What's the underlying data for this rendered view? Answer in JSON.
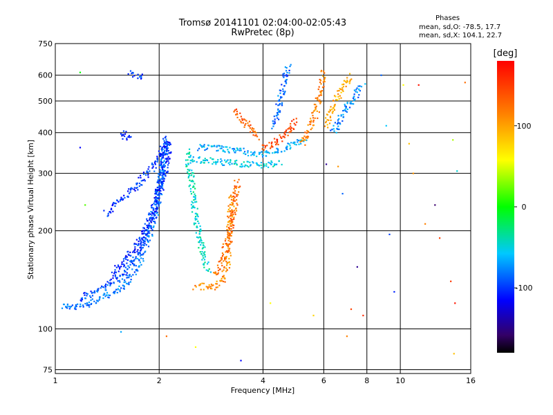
{
  "chart_data": {
    "type": "scatter",
    "title": "Tromsø 20141101 02:04:00-02:05:43",
    "subtitle": "RwPretec (8p)",
    "xlabel": "Frequency [MHz]",
    "ylabel": "Stationary phase Virtual Height [km]",
    "x_scale": "log",
    "y_scale": "log",
    "xlim": [
      1,
      16
    ],
    "ylim": [
      73,
      750
    ],
    "x_ticks": [
      "1",
      "2",
      "4",
      "6",
      "8",
      "10",
      "16"
    ],
    "y_ticks": [
      "750",
      "600",
      "500",
      "400",
      "300",
      "200",
      "100",
      "75"
    ],
    "grid": true,
    "legend": {
      "title": "Phases",
      "line1": "mean, sd,O: -78.5, 17.7",
      "line2": "mean, sd,X: 104.1, 22.7"
    },
    "colorbar": {
      "label": "[deg]",
      "min": -180,
      "max": 180,
      "ticks": [
        "100",
        "0",
        "-100"
      ],
      "colormap": "rainbow"
    },
    "traces": [
      {
        "x": [
          1.05,
          1.13,
          1.2,
          1.28,
          1.38,
          1.5,
          1.62,
          1.75,
          1.86,
          1.96,
          2.02,
          2.08
        ],
        "y": [
          118,
          116,
          118,
          121,
          125,
          130,
          140,
          160,
          190,
          230,
          290,
          370
        ],
        "phase": -85
      },
      {
        "x": [
          1.18,
          1.28,
          1.4,
          1.55,
          1.7,
          1.85,
          1.98,
          2.06,
          2.12
        ],
        "y": [
          124,
          128,
          135,
          145,
          165,
          200,
          260,
          330,
          390
        ],
        "phase": -95
      },
      {
        "x": [
          1.45,
          1.58,
          1.72,
          1.88,
          2.0,
          2.1,
          2.15
        ],
        "y": [
          145,
          160,
          180,
          215,
          260,
          320,
          380
        ],
        "phase": -110
      },
      {
        "x": [
          1.4,
          1.55,
          1.7,
          1.8,
          1.9,
          2.0,
          2.1
        ],
        "y": [
          225,
          250,
          270,
          290,
          310,
          340,
          380
        ],
        "phase": -105
      },
      {
        "x": [
          2.42,
          2.46,
          2.5,
          2.55,
          2.62,
          2.7,
          2.78
        ],
        "y": [
          350,
          300,
          260,
          220,
          190,
          165,
          150
        ],
        "phase": -45
      },
      {
        "x": [
          2.45,
          2.6,
          2.8,
          3.0,
          3.3,
          3.6,
          3.9,
          4.2,
          4.5
        ],
        "y": [
          335,
          330,
          328,
          325,
          322,
          320,
          318,
          320,
          325
        ],
        "phase": -55
      },
      {
        "x": [
          2.6,
          2.9,
          3.2,
          3.5,
          3.8,
          4.1,
          4.4,
          4.7,
          5.0,
          5.3
        ],
        "y": [
          360,
          360,
          355,
          350,
          345,
          345,
          350,
          360,
          370,
          385
        ],
        "phase": -70
      },
      {
        "x": [
          2.55,
          2.7,
          2.9,
          3.05,
          3.15,
          3.2,
          3.25
        ],
        "y": [
          135,
          135,
          135,
          140,
          160,
          200,
          260
        ],
        "phase": 115
      },
      {
        "x": [
          2.9,
          3.05,
          3.15,
          3.25,
          3.32,
          3.38
        ],
        "y": [
          145,
          160,
          185,
          215,
          250,
          285
        ],
        "phase": 130
      },
      {
        "x": [
          3.3,
          3.5,
          3.7,
          3.9
        ],
        "y": [
          470,
          440,
          410,
          385
        ],
        "phase": 135
      },
      {
        "x": [
          4.0,
          4.2,
          4.4,
          4.6,
          4.8,
          5.0
        ],
        "y": [
          360,
          365,
          375,
          390,
          410,
          440
        ],
        "phase": 150
      },
      {
        "x": [
          4.3,
          4.45,
          4.55,
          4.65,
          4.75
        ],
        "y": [
          420,
          480,
          540,
          600,
          640
        ],
        "phase": -90
      },
      {
        "x": [
          5.2,
          5.4,
          5.6,
          5.8,
          5.9,
          6.0
        ],
        "y": [
          370,
          400,
          440,
          500,
          560,
          620
        ],
        "phase": 120
      },
      {
        "x": [
          6.1,
          6.3,
          6.6,
          6.9,
          7.2
        ],
        "y": [
          420,
          460,
          520,
          560,
          600
        ],
        "phase": 100
      },
      {
        "x": [
          6.4,
          6.7,
          7.0,
          7.4,
          7.8
        ],
        "y": [
          400,
          440,
          480,
          520,
          560
        ],
        "phase": -80
      },
      {
        "x": [
          1.65,
          1.72,
          1.8
        ],
        "y": [
          610,
          600,
          590
        ],
        "phase": -100
      },
      {
        "x": [
          1.55,
          1.6,
          1.65
        ],
        "y": [
          400,
          390,
          380
        ],
        "phase": -110
      }
    ],
    "isolated_points": [
      {
        "x": 1.18,
        "y": 612,
        "phase": 0
      },
      {
        "x": 1.18,
        "y": 360,
        "phase": -120
      },
      {
        "x": 1.22,
        "y": 240,
        "phase": 20
      },
      {
        "x": 1.55,
        "y": 98,
        "phase": -70
      },
      {
        "x": 2.1,
        "y": 95,
        "phase": 130
      },
      {
        "x": 2.55,
        "y": 88,
        "phase": 60
      },
      {
        "x": 3.45,
        "y": 80,
        "phase": -120
      },
      {
        "x": 4.2,
        "y": 120,
        "phase": 60
      },
      {
        "x": 5.6,
        "y": 110,
        "phase": 80
      },
      {
        "x": 6.1,
        "y": 320,
        "phase": -150
      },
      {
        "x": 6.6,
        "y": 315,
        "phase": 110
      },
      {
        "x": 6.8,
        "y": 260,
        "phase": -90
      },
      {
        "x": 7.0,
        "y": 95,
        "phase": 120
      },
      {
        "x": 7.2,
        "y": 115,
        "phase": 150
      },
      {
        "x": 7.5,
        "y": 155,
        "phase": -150
      },
      {
        "x": 7.8,
        "y": 110,
        "phase": 160
      },
      {
        "x": 8.8,
        "y": 600,
        "phase": -90
      },
      {
        "x": 9.1,
        "y": 420,
        "phase": -60
      },
      {
        "x": 9.3,
        "y": 195,
        "phase": -100
      },
      {
        "x": 9.6,
        "y": 130,
        "phase": -110
      },
      {
        "x": 10.2,
        "y": 560,
        "phase": 60
      },
      {
        "x": 10.6,
        "y": 370,
        "phase": 90
      },
      {
        "x": 10.9,
        "y": 300,
        "phase": 110
      },
      {
        "x": 11.3,
        "y": 560,
        "phase": 170
      },
      {
        "x": 12.6,
        "y": 240,
        "phase": -160
      },
      {
        "x": 13.0,
        "y": 190,
        "phase": 150
      },
      {
        "x": 14.2,
        "y": 380,
        "phase": 40
      },
      {
        "x": 14.4,
        "y": 120,
        "phase": 170
      },
      {
        "x": 14.6,
        "y": 305,
        "phase": -50
      },
      {
        "x": 15.4,
        "y": 570,
        "phase": 130
      },
      {
        "x": 11.8,
        "y": 210,
        "phase": 120
      },
      {
        "x": 14.0,
        "y": 140,
        "phase": 155
      },
      {
        "x": 14.3,
        "y": 84,
        "phase": 90
      }
    ]
  }
}
